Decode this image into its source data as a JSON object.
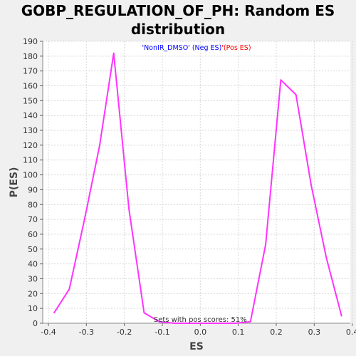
{
  "chart_data": {
    "type": "line",
    "title_line1": "GOBP_REGULATION_OF_PH: Random ES",
    "title_line2": "distribution",
    "xlabel": "ES",
    "ylabel": "P(ES)",
    "xlim": [
      -0.415,
      0.395
    ],
    "ylim": [
      0,
      190
    ],
    "xticks": [
      "-0.4",
      "-0.3",
      "-0.2",
      "-0.1",
      "0.0",
      "0.1",
      "0.2",
      "0.3",
      "0.4"
    ],
    "xtick_values": [
      -0.4,
      -0.3,
      -0.2,
      -0.1,
      0.0,
      0.1,
      0.2,
      0.3,
      0.4
    ],
    "yticks": [
      0,
      10,
      20,
      30,
      40,
      50,
      60,
      70,
      80,
      90,
      100,
      110,
      120,
      130,
      140,
      150,
      160,
      170,
      180,
      190
    ],
    "grid": true,
    "legend": {
      "placement": "top-center",
      "neg_label": "'NonIR_DMSO' (Neg ES)",
      "sep": "'",
      "pos_label": "(Pos ES)",
      "neg_color": "#0000ff",
      "pos_color": "#ff0000"
    },
    "annotation": "Sets with pos scores: 51%",
    "series": [
      {
        "color": "#ff33ff",
        "x": [
          -0.385,
          -0.345,
          -0.305,
          -0.265,
          -0.228,
          -0.188,
          -0.148,
          -0.108,
          -0.068,
          -0.028,
          0.012,
          0.052,
          0.092,
          0.132,
          0.172,
          0.212,
          0.252,
          0.292,
          0.332,
          0.372
        ],
        "y": [
          7,
          23,
          70,
          120,
          182,
          77,
          7,
          1,
          0,
          0,
          0,
          0,
          0,
          1,
          53,
          164,
          154,
          93,
          44,
          5
        ]
      }
    ]
  }
}
